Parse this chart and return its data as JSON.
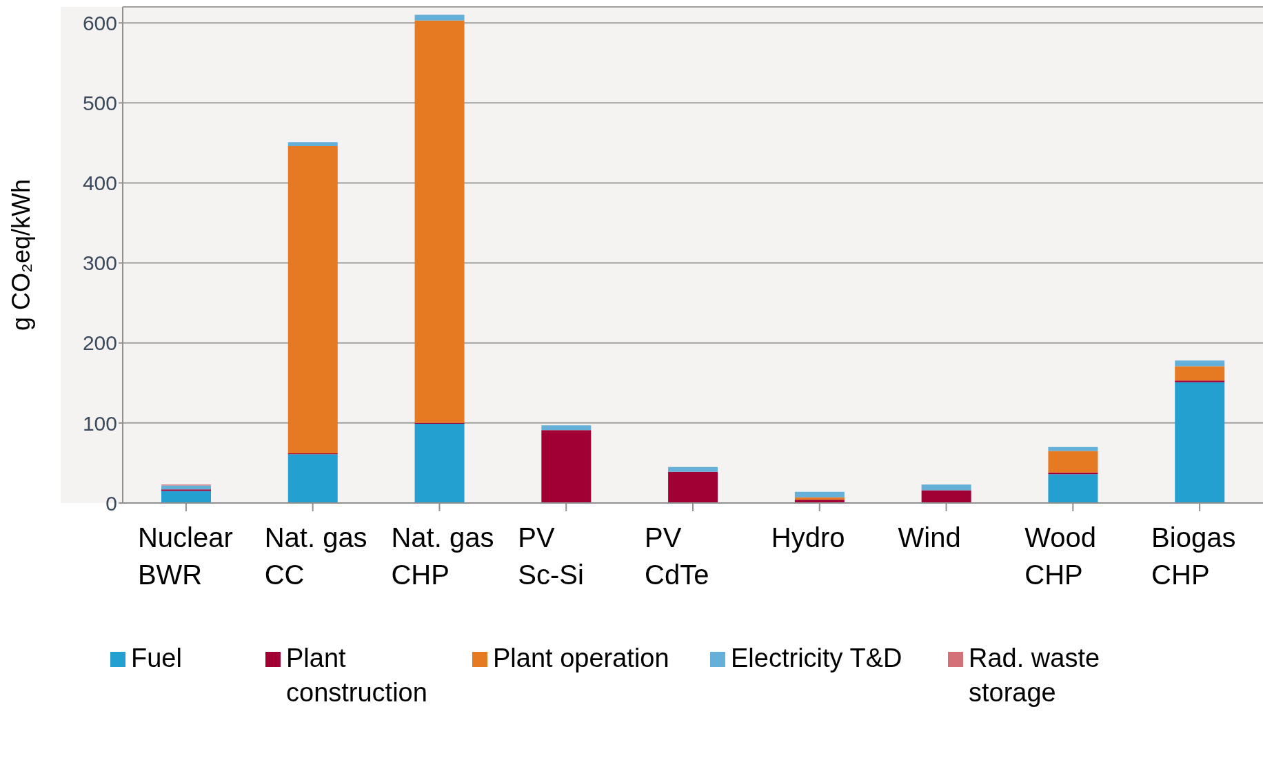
{
  "chart_data": {
    "type": "bar",
    "stacked": true,
    "ylabel": "g CO₂eq/kWh",
    "categories": [
      "Nuclear\nBWR",
      "Nat. gas\nCC",
      "Nat. gas\nCHP",
      "PV\nSc-Si",
      "PV\nCdTe",
      "Hydro",
      "Wind",
      "Wood\nCHP",
      "Biogas\nCHP"
    ],
    "series": [
      {
        "name": "Fuel",
        "color": "#239fd0",
        "values": [
          15,
          61,
          99,
          0,
          0,
          0,
          0,
          36,
          151
        ]
      },
      {
        "name": "Plant construction",
        "color": "#a10035",
        "values": [
          2,
          1,
          1,
          91,
          39,
          4,
          16,
          2,
          2
        ]
      },
      {
        "name": "Plant operation",
        "color": "#e57a23",
        "values": [
          0,
          384,
          503,
          0,
          0,
          3,
          0,
          27,
          18
        ]
      },
      {
        "name": "Electricity T&D",
        "color": "#64b0d8",
        "values": [
          5,
          5,
          7,
          6,
          6,
          7,
          7,
          5,
          7
        ]
      },
      {
        "name": "Rad. waste storage",
        "color": "#d47078",
        "values": [
          1,
          0,
          0,
          0,
          0,
          0,
          0,
          0,
          0
        ]
      }
    ],
    "ylim": [
      0,
      620
    ],
    "yticks": [
      0,
      100,
      200,
      300,
      400,
      500,
      600
    ],
    "grid": "y",
    "legend": "bottom"
  }
}
